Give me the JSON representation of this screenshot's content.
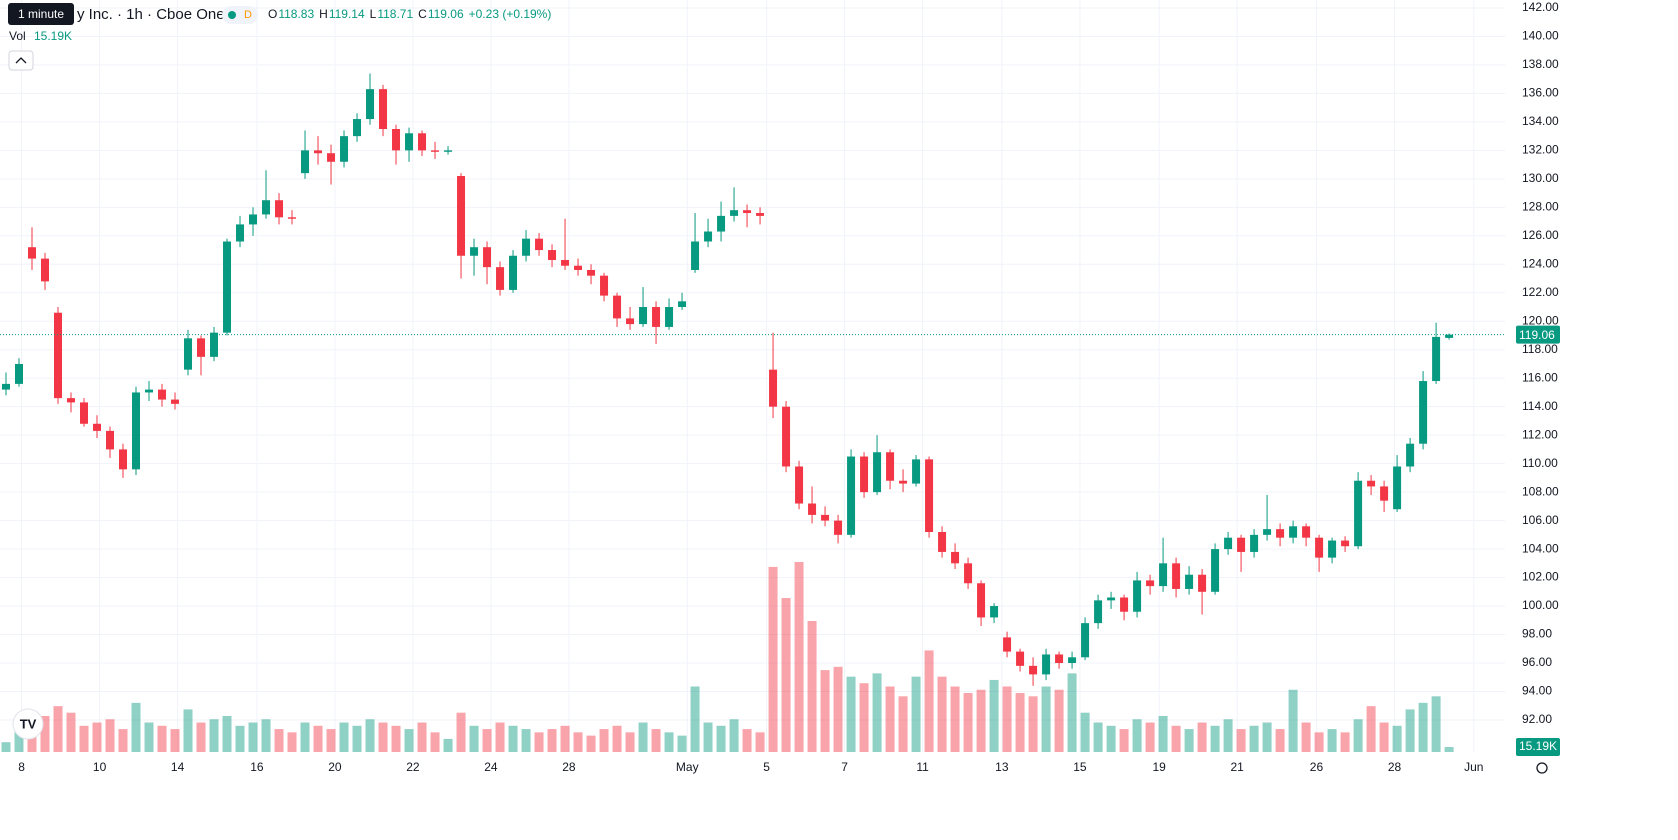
{
  "chart_data": {
    "type": "candlestick",
    "tooltip": "1 minute",
    "title": "y Inc. · 1h · Cboe One",
    "badge": "D",
    "ohlc_letters": [
      "O",
      "H",
      "L",
      "C"
    ],
    "change": "+0.23 (+0.19%)",
    "up_color": "#089981",
    "down_color": "#f23645",
    "xlim": [
      -0.4615,
      115.3
    ],
    "xticks": [
      {
        "value": 1.2,
        "label": "8"
      },
      {
        "value": 7.2,
        "label": "10"
      },
      {
        "value": 13.2,
        "label": "14"
      },
      {
        "value": 19.3,
        "label": "16"
      },
      {
        "value": 25.3,
        "label": "20"
      },
      {
        "value": 31.3,
        "label": "22"
      },
      {
        "value": 37.3,
        "label": "24"
      },
      {
        "value": 43.3,
        "label": "28"
      },
      {
        "value": 52.4,
        "label": "May"
      },
      {
        "value": 58.5,
        "label": "5"
      },
      {
        "value": 64.5,
        "label": "7"
      },
      {
        "value": 70.5,
        "label": "11"
      },
      {
        "value": 76.6,
        "label": "13"
      },
      {
        "value": 82.6,
        "label": "15"
      },
      {
        "value": 88.7,
        "label": "19"
      },
      {
        "value": 94.7,
        "label": "21"
      },
      {
        "value": 100.8,
        "label": "26"
      },
      {
        "value": 106.8,
        "label": "28"
      },
      {
        "value": 112.9,
        "label": "Jun"
      }
    ],
    "ylim": [
      89.75,
      142.56
    ],
    "yticks": [
      {
        "value": 92,
        "label": "92.00"
      },
      {
        "value": 94,
        "label": "94.00"
      },
      {
        "value": 96,
        "label": "96.00"
      },
      {
        "value": 98,
        "label": "98.00"
      },
      {
        "value": 100,
        "label": "100.00"
      },
      {
        "value": 102,
        "label": "102.00"
      },
      {
        "value": 104,
        "label": "104.00"
      },
      {
        "value": 106,
        "label": "106.00"
      },
      {
        "value": 108,
        "label": "108.00"
      },
      {
        "value": 110,
        "label": "110.00"
      },
      {
        "value": 112,
        "label": "112.00"
      },
      {
        "value": 114,
        "label": "114.00"
      },
      {
        "value": 116,
        "label": "116.00"
      },
      {
        "value": 118,
        "label": "118.00"
      },
      {
        "value": 120,
        "label": "120.00"
      },
      {
        "value": 122,
        "label": "122.00"
      },
      {
        "value": 124,
        "label": "124.00"
      },
      {
        "value": 126,
        "label": "126.00"
      },
      {
        "value": 128,
        "label": "128.00"
      },
      {
        "value": 130,
        "label": "130.00"
      },
      {
        "value": 132,
        "label": "132.00"
      },
      {
        "value": 134,
        "label": "134.00"
      },
      {
        "value": 136,
        "label": "136.00"
      },
      {
        "value": 138,
        "label": "138.00"
      },
      {
        "value": 140,
        "label": "140.00"
      },
      {
        "value": 142,
        "label": "142.00"
      }
    ],
    "grid": true,
    "ohlc": [
      [
        115.2,
        116.4,
        114.8,
        115.6
      ],
      [
        115.6,
        117.4,
        115.4,
        117.0
      ],
      [
        125.2,
        126.6,
        123.6,
        124.4
      ],
      [
        124.4,
        124.8,
        122.2,
        122.8
      ],
      [
        120.6,
        121.0,
        114.2,
        114.6
      ],
      [
        114.6,
        115.0,
        113.6,
        114.3
      ],
      [
        114.3,
        114.6,
        112.6,
        112.8
      ],
      [
        112.8,
        113.4,
        111.8,
        112.3
      ],
      [
        112.3,
        112.6,
        110.4,
        111.0
      ],
      [
        111.0,
        111.4,
        109.0,
        109.6
      ],
      [
        109.6,
        115.4,
        109.2,
        115.0
      ],
      [
        115.0,
        115.8,
        114.4,
        115.2
      ],
      [
        115.2,
        115.6,
        114.0,
        114.5
      ],
      [
        114.5,
        115.0,
        113.8,
        114.2
      ],
      [
        116.6,
        119.4,
        116.2,
        118.8
      ],
      [
        118.8,
        119.0,
        116.2,
        117.5
      ],
      [
        117.5,
        119.6,
        117.2,
        119.2
      ],
      [
        119.2,
        125.8,
        119.0,
        125.6
      ],
      [
        125.6,
        127.4,
        125.2,
        126.8
      ],
      [
        126.8,
        128.0,
        126.0,
        127.5
      ],
      [
        127.5,
        130.6,
        127.2,
        128.5
      ],
      [
        128.5,
        129.0,
        126.8,
        127.3
      ],
      [
        127.3,
        127.8,
        126.8,
        127.2
      ],
      [
        130.4,
        133.4,
        130.0,
        132.0
      ],
      [
        132.0,
        133.0,
        131.0,
        131.8
      ],
      [
        131.8,
        132.4,
        129.6,
        131.2
      ],
      [
        131.2,
        133.4,
        130.8,
        133.0
      ],
      [
        133.0,
        134.6,
        132.6,
        134.2
      ],
      [
        134.2,
        137.4,
        133.8,
        136.3
      ],
      [
        136.3,
        136.6,
        133.0,
        133.5
      ],
      [
        133.5,
        133.8,
        131.0,
        132.0
      ],
      [
        132.0,
        133.6,
        131.2,
        133.2
      ],
      [
        133.2,
        133.4,
        131.6,
        132.0
      ],
      [
        132.0,
        132.6,
        131.4,
        131.9
      ],
      [
        131.9,
        132.3,
        131.7,
        132.0
      ],
      [
        130.2,
        130.4,
        123.0,
        124.6
      ],
      [
        124.6,
        125.8,
        123.2,
        125.2
      ],
      [
        125.2,
        125.6,
        122.6,
        123.8
      ],
      [
        123.8,
        124.2,
        121.8,
        122.2
      ],
      [
        122.2,
        125.0,
        122.0,
        124.6
      ],
      [
        124.6,
        126.4,
        124.2,
        125.8
      ],
      [
        125.8,
        126.2,
        124.6,
        125.0
      ],
      [
        125.0,
        125.4,
        123.8,
        124.3
      ],
      [
        124.3,
        127.2,
        123.6,
        123.9
      ],
      [
        123.9,
        124.4,
        123.2,
        123.6
      ],
      [
        123.6,
        124.0,
        122.6,
        123.2
      ],
      [
        123.2,
        123.4,
        121.4,
        121.8
      ],
      [
        121.8,
        122.0,
        119.6,
        120.2
      ],
      [
        120.2,
        121.0,
        119.4,
        119.8
      ],
      [
        119.8,
        122.4,
        119.6,
        121.0
      ],
      [
        121.0,
        121.4,
        118.4,
        119.6
      ],
      [
        119.6,
        121.6,
        119.4,
        121.0
      ],
      [
        121.0,
        122.0,
        120.8,
        121.4
      ],
      [
        123.6,
        127.6,
        123.4,
        125.6
      ],
      [
        125.6,
        127.2,
        125.2,
        126.3
      ],
      [
        126.3,
        128.4,
        125.6,
        127.4
      ],
      [
        127.4,
        129.4,
        127.0,
        127.8
      ],
      [
        127.8,
        128.2,
        126.6,
        127.6
      ],
      [
        127.6,
        128.0,
        126.8,
        127.4
      ],
      [
        116.6,
        119.2,
        113.2,
        114.0
      ],
      [
        114.0,
        114.4,
        109.4,
        109.8
      ],
      [
        109.8,
        110.2,
        106.8,
        107.2
      ],
      [
        107.2,
        108.4,
        105.8,
        106.4
      ],
      [
        106.4,
        107.0,
        105.6,
        106.0
      ],
      [
        106.0,
        106.4,
        104.4,
        105.0
      ],
      [
        105.0,
        111.0,
        104.8,
        110.5
      ],
      [
        110.5,
        110.8,
        107.6,
        108.0
      ],
      [
        108.0,
        112.0,
        107.8,
        110.8
      ],
      [
        110.8,
        111.0,
        108.2,
        108.8
      ],
      [
        108.8,
        109.6,
        108.0,
        108.6
      ],
      [
        108.6,
        110.6,
        108.4,
        110.3
      ],
      [
        110.3,
        110.5,
        104.8,
        105.2
      ],
      [
        105.2,
        105.6,
        103.4,
        103.8
      ],
      [
        103.8,
        104.4,
        102.6,
        103.0
      ],
      [
        103.0,
        103.4,
        101.2,
        101.6
      ],
      [
        101.6,
        101.8,
        98.6,
        99.2
      ],
      [
        99.2,
        100.2,
        98.8,
        100.0
      ],
      [
        97.8,
        98.2,
        96.4,
        96.8
      ],
      [
        96.8,
        97.0,
        95.4,
        95.8
      ],
      [
        95.8,
        96.4,
        94.4,
        95.2
      ],
      [
        95.2,
        97.0,
        94.8,
        96.6
      ],
      [
        96.6,
        96.8,
        95.6,
        96.0
      ],
      [
        96.0,
        96.8,
        95.6,
        96.4
      ],
      [
        96.4,
        99.2,
        96.2,
        98.8
      ],
      [
        98.8,
        100.8,
        98.4,
        100.4
      ],
      [
        100.4,
        101.0,
        99.8,
        100.6
      ],
      [
        100.6,
        100.8,
        99.0,
        99.6
      ],
      [
        99.6,
        102.4,
        99.2,
        101.8
      ],
      [
        101.8,
        102.2,
        100.8,
        101.4
      ],
      [
        101.4,
        104.8,
        101.0,
        103.0
      ],
      [
        103.0,
        103.4,
        100.6,
        101.2
      ],
      [
        101.2,
        102.8,
        100.8,
        102.2
      ],
      [
        102.2,
        102.6,
        99.4,
        101.0
      ],
      [
        101.0,
        104.4,
        100.8,
        104.0
      ],
      [
        104.0,
        105.2,
        103.6,
        104.8
      ],
      [
        104.8,
        105.0,
        102.4,
        103.8
      ],
      [
        103.8,
        105.4,
        103.4,
        105.0
      ],
      [
        105.0,
        107.8,
        104.6,
        105.4
      ],
      [
        105.4,
        105.8,
        104.2,
        104.8
      ],
      [
        104.8,
        106.0,
        104.4,
        105.6
      ],
      [
        105.6,
        105.8,
        104.2,
        104.8
      ],
      [
        104.8,
        105.0,
        102.4,
        103.4
      ],
      [
        103.4,
        104.8,
        103.0,
        104.6
      ],
      [
        104.6,
        104.9,
        103.8,
        104.2
      ],
      [
        104.2,
        109.4,
        104.0,
        108.8
      ],
      [
        108.8,
        109.2,
        107.8,
        108.4
      ],
      [
        108.4,
        108.8,
        106.6,
        107.4
      ],
      [
        106.8,
        110.6,
        106.6,
        109.8
      ],
      [
        109.8,
        111.8,
        109.4,
        111.4
      ],
      [
        111.4,
        116.5,
        111.0,
        115.8
      ],
      [
        115.8,
        119.9,
        115.6,
        118.9
      ],
      [
        118.83,
        119.14,
        118.71,
        119.06
      ]
    ],
    "volume": {
      "name": "Vol",
      "last_label": "15.19K",
      "values": [
        30,
        70,
        90,
        110,
        140,
        120,
        80,
        90,
        100,
        70,
        150,
        90,
        80,
        70,
        130,
        90,
        100,
        110,
        80,
        90,
        100,
        70,
        60,
        90,
        80,
        70,
        90,
        80,
        100,
        90,
        80,
        70,
        90,
        60,
        40,
        120,
        80,
        70,
        90,
        80,
        70,
        60,
        70,
        80,
        60,
        50,
        70,
        80,
        60,
        90,
        70,
        60,
        50,
        200,
        90,
        80,
        100,
        70,
        60,
        565,
        470,
        580,
        400,
        250,
        260,
        230,
        210,
        240,
        200,
        170,
        230,
        310,
        230,
        200,
        180,
        190,
        220,
        200,
        180,
        170,
        200,
        190,
        240,
        120,
        90,
        80,
        70,
        100,
        90,
        110,
        80,
        70,
        90,
        80,
        100,
        70,
        80,
        90,
        70,
        190,
        90,
        60,
        70,
        60,
        100,
        140,
        90,
        80,
        130,
        150,
        170,
        15.19
      ]
    }
  }
}
